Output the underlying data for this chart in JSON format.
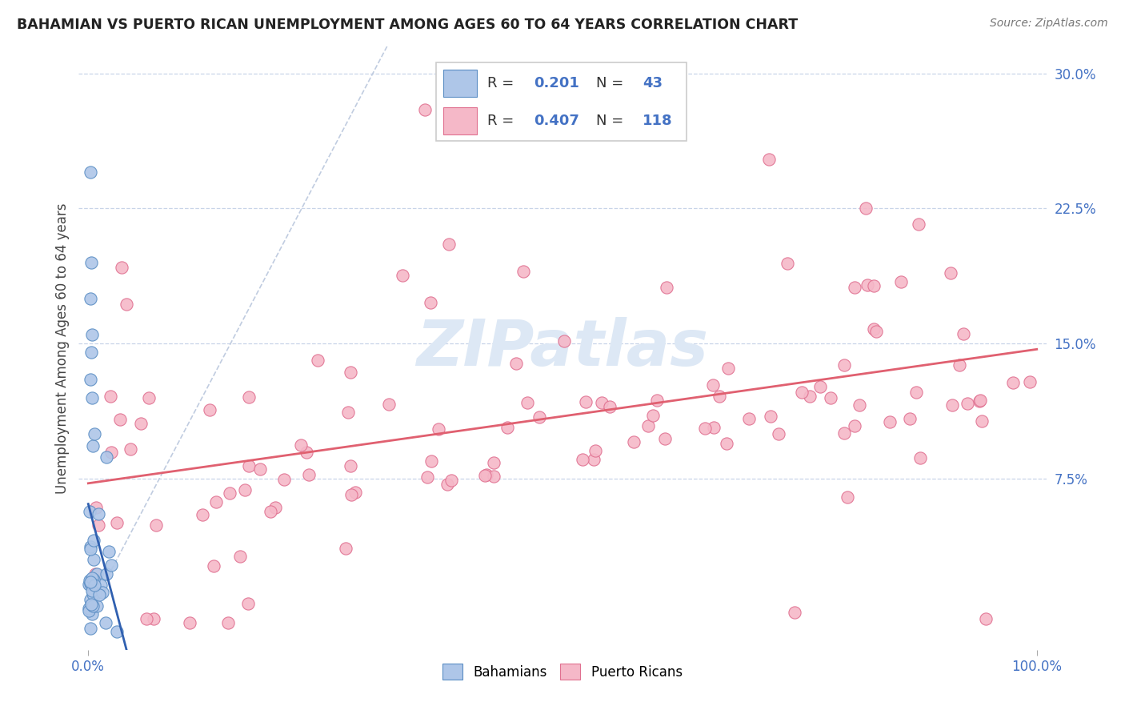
{
  "title": "BAHAMIAN VS PUERTO RICAN UNEMPLOYMENT AMONG AGES 60 TO 64 YEARS CORRELATION CHART",
  "source": "Source: ZipAtlas.com",
  "ylabel": "Unemployment Among Ages 60 to 64 years",
  "xlim": [
    -0.01,
    1.01
  ],
  "ylim": [
    -0.02,
    0.315
  ],
  "y_ticks_right": [
    0.075,
    0.15,
    0.225,
    0.3
  ],
  "y_tick_labels_right": [
    "7.5%",
    "15.0%",
    "22.5%",
    "30.0%"
  ],
  "bahamian_color": "#aec6e8",
  "bahamian_edge": "#5b8ec4",
  "puerto_rican_color": "#f5b8c8",
  "puerto_rican_edge": "#e07090",
  "bahamian_line_color": "#3060b0",
  "puerto_rican_line_color": "#e06070",
  "diagonal_color": "#c0cce0",
  "watermark_color": "#dde8f5",
  "legend_border": "#cccccc",
  "legend_R_N_color": "#4472c4",
  "title_color": "#222222",
  "source_color": "#777777",
  "ylabel_color": "#444444",
  "tick_color": "#4472c4",
  "grid_color": "#c8d4e8",
  "bah_R": "0.201",
  "bah_N": "43",
  "pr_R": "0.407",
  "pr_N": "118",
  "marker_size": 120,
  "marker_lw": 0.8,
  "reg_lw": 2.0
}
